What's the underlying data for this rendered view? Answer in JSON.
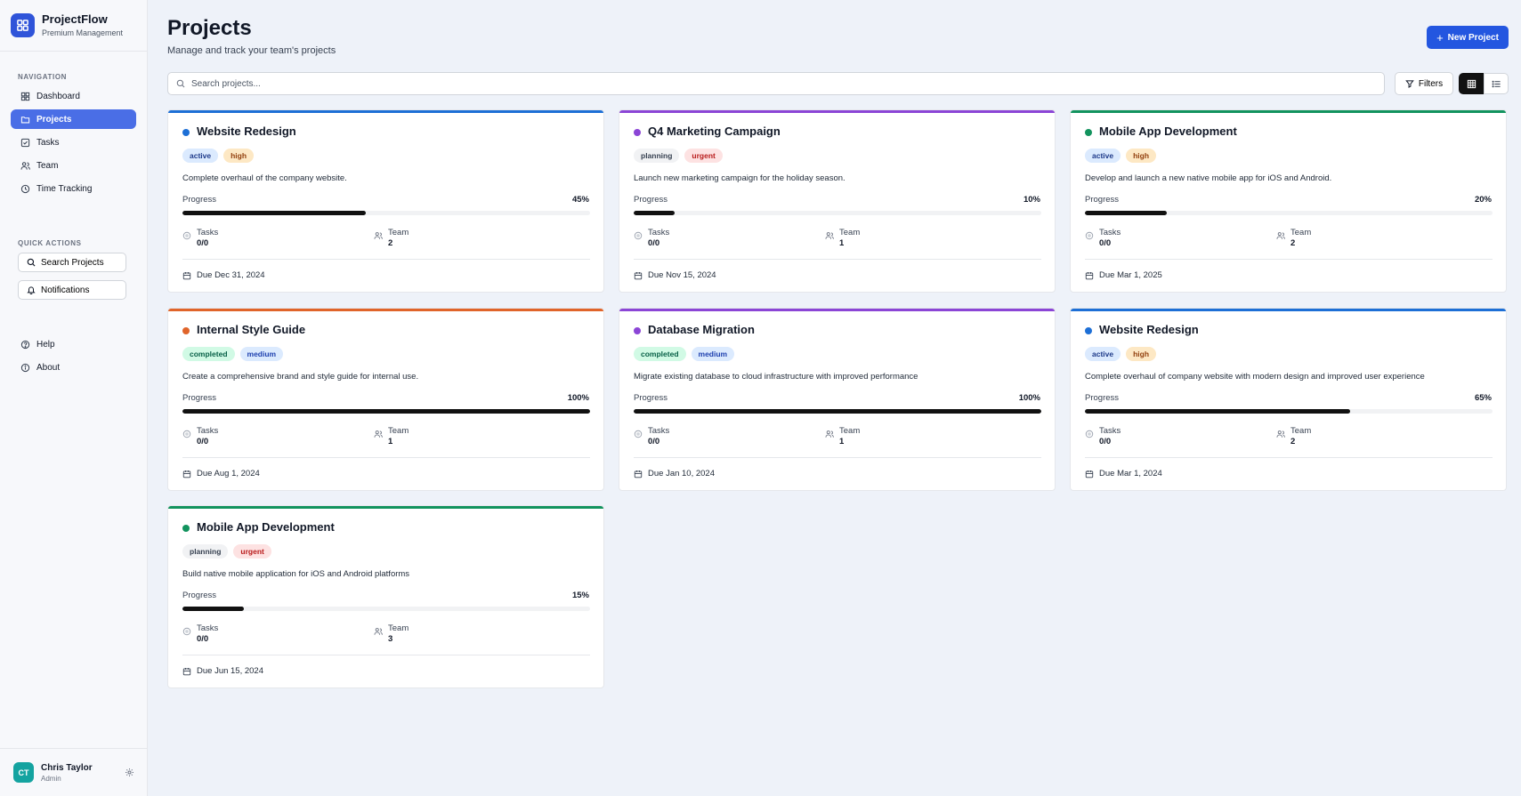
{
  "brand": {
    "title": "ProjectFlow",
    "subtitle": "Premium Management"
  },
  "nav": {
    "section_label": "NAVIGATION",
    "items": [
      {
        "label": "Dashboard",
        "icon": "dashboard-icon"
      },
      {
        "label": "Projects",
        "icon": "folder-icon",
        "active": true
      },
      {
        "label": "Tasks",
        "icon": "check-square-icon"
      },
      {
        "label": "Team",
        "icon": "users-icon"
      },
      {
        "label": "Time Tracking",
        "icon": "clock-icon"
      }
    ]
  },
  "quick_actions": {
    "section_label": "QUICK ACTIONS",
    "search_label": "Search Projects",
    "notifications_label": "Notifications"
  },
  "footer_links": {
    "help": "Help",
    "about": "About"
  },
  "user": {
    "initials": "CT",
    "name": "Chris Taylor",
    "role": "Admin"
  },
  "header": {
    "title": "Projects",
    "subtitle": "Manage and track your team's projects",
    "new_button": "New Project"
  },
  "toolbar": {
    "search_placeholder": "Search projects...",
    "filters_label": "Filters"
  },
  "labels": {
    "progress": "Progress",
    "tasks": "Tasks",
    "team": "Team"
  },
  "colors": {
    "blue": "#1d6fd6",
    "purple": "#8b45d6",
    "green": "#12935e",
    "orange": "#e0642a"
  },
  "projects": [
    {
      "title": "Website Redesign",
      "color": "#1d6fd6",
      "status": "active",
      "priority": "high",
      "description": "Complete overhaul of the company website.",
      "progress": 45,
      "progress_label": "45%",
      "tasks": "0/0",
      "team": "2",
      "due": "Due Dec 31, 2024"
    },
    {
      "title": "Q4 Marketing Campaign",
      "color": "#8b45d6",
      "status": "planning",
      "priority": "urgent",
      "description": "Launch new marketing campaign for the holiday season.",
      "progress": 10,
      "progress_label": "10%",
      "tasks": "0/0",
      "team": "1",
      "due": "Due Nov 15, 2024"
    },
    {
      "title": "Mobile App Development",
      "color": "#12935e",
      "status": "active",
      "priority": "high",
      "description": "Develop and launch a new native mobile app for iOS and Android.",
      "progress": 20,
      "progress_label": "20%",
      "tasks": "0/0",
      "team": "2",
      "due": "Due Mar 1, 2025"
    },
    {
      "title": "Internal Style Guide",
      "color": "#e0642a",
      "status": "completed",
      "priority": "medium",
      "description": "Create a comprehensive brand and style guide for internal use.",
      "progress": 100,
      "progress_label": "100%",
      "tasks": "0/0",
      "team": "1",
      "due": "Due Aug 1, 2024"
    },
    {
      "title": "Database Migration",
      "color": "#8b45d6",
      "status": "completed",
      "priority": "medium",
      "description": "Migrate existing database to cloud infrastructure with improved performance",
      "progress": 100,
      "progress_label": "100%",
      "tasks": "0/0",
      "team": "1",
      "due": "Due Jan 10, 2024"
    },
    {
      "title": "Website Redesign",
      "color": "#1d6fd6",
      "status": "active",
      "priority": "high",
      "description": "Complete overhaul of company website with modern design and improved user experience",
      "progress": 65,
      "progress_label": "65%",
      "tasks": "0/0",
      "team": "2",
      "due": "Due Mar 1, 2024"
    },
    {
      "title": "Mobile App Development",
      "color": "#12935e",
      "status": "planning",
      "priority": "urgent",
      "description": "Build native mobile application for iOS and Android platforms",
      "progress": 15,
      "progress_label": "15%",
      "tasks": "0/0",
      "team": "3",
      "due": "Due Jun 15, 2024"
    }
  ]
}
